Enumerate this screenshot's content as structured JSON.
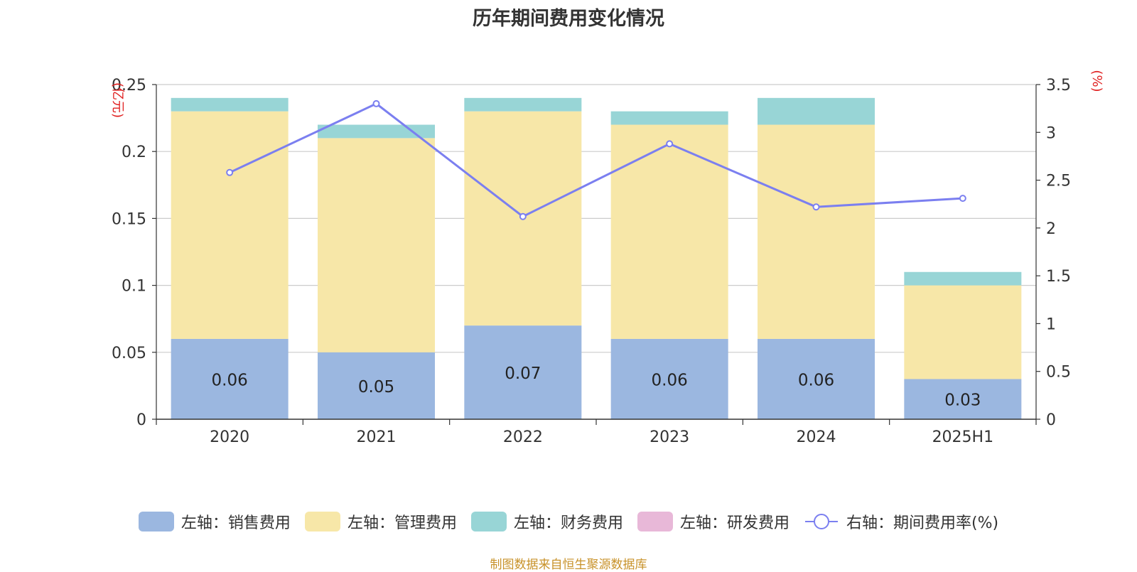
{
  "chart_data": {
    "type": "bar",
    "stacked": true,
    "title": "历年期间费用变化情况",
    "categories": [
      "2020",
      "2021",
      "2022",
      "2023",
      "2024",
      "2025H1"
    ],
    "left_axis": {
      "unit_label": "(亿元)",
      "ylim": [
        0,
        0.25
      ],
      "ticks": [
        "0",
        "0.05",
        "0.1",
        "0.15",
        "0.2",
        "0.25"
      ],
      "tick_values": [
        0,
        0.05,
        0.1,
        0.15,
        0.2,
        0.25
      ]
    },
    "right_axis": {
      "unit_label": "(%)",
      "ylim": [
        0,
        3.5
      ],
      "ticks": [
        "0",
        "0.5",
        "1",
        "1.5",
        "2",
        "2.5",
        "3",
        "3.5"
      ],
      "tick_values": [
        0,
        0.5,
        1,
        1.5,
        2,
        2.5,
        3,
        3.5
      ]
    },
    "series": [
      {
        "name": "左轴：销售费用",
        "axis": "left",
        "kind": "bar",
        "color": "#9bb7e0",
        "values": [
          0.06,
          0.05,
          0.07,
          0.06,
          0.06,
          0.03
        ],
        "labels": [
          "0.06",
          "0.05",
          "0.07",
          "0.06",
          "0.06",
          "0.03"
        ]
      },
      {
        "name": "左轴：管理费用",
        "axis": "left",
        "kind": "bar",
        "color": "#f7e7a8",
        "values": [
          0.17,
          0.16,
          0.16,
          0.16,
          0.16,
          0.07
        ]
      },
      {
        "name": "左轴：财务费用",
        "axis": "left",
        "kind": "bar",
        "color": "#98d5d6",
        "values": [
          0.01,
          0.01,
          0.01,
          0.01,
          0.02,
          0.01
        ]
      },
      {
        "name": "左轴：研发费用",
        "axis": "left",
        "kind": "bar",
        "color": "#e8b8d8",
        "values": [
          0,
          0,
          0,
          0,
          0,
          0
        ]
      },
      {
        "name": "右轴：期间费用率(%)",
        "axis": "right",
        "kind": "line",
        "color": "#7b7ff0",
        "values": [
          2.58,
          3.3,
          2.12,
          2.88,
          2.22,
          2.31
        ]
      }
    ]
  },
  "footer": {
    "source": "制图数据来自恒生聚源数据库"
  }
}
